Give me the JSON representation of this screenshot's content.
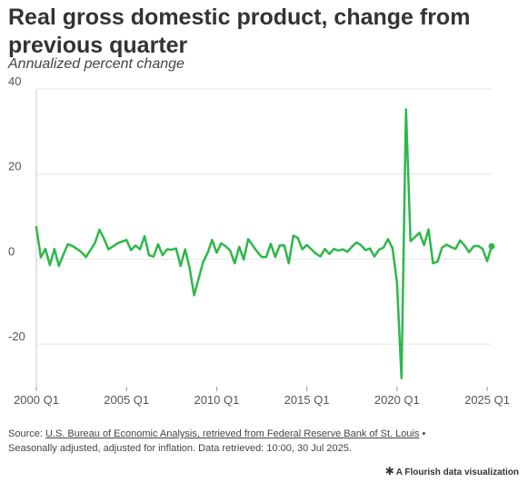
{
  "header": {
    "title": "Real gross domestic product, change from previous quarter",
    "subtitle": "Annualized percent change"
  },
  "footer": {
    "source_prefix": "Source: ",
    "source_link": "U.S. Bureau of Economic Analysis, retrieved from Federal Reserve Bank of St. Louis",
    "bullet": " •",
    "note": "Seasonally adjusted, adjusted for inflation. Data retrieved: 10:00, 30 Jul 2025.",
    "credit": "A Flourish data visualization",
    "credit_icon": "flourish-star-icon"
  },
  "chart_data": {
    "type": "line",
    "title": "Real gross domestic product, change from previous quarter",
    "subtitle": "Annualized percent change",
    "xlabel": "",
    "ylabel": "",
    "x_start": "2000 Q1",
    "x_end": "2025 Q2",
    "xticks": [
      "2000 Q1",
      "2005 Q1",
      "2010 Q1",
      "2015 Q1",
      "2020 Q1",
      "2025 Q1"
    ],
    "yticks": [
      40,
      20,
      0,
      -20
    ],
    "ylim": [
      -30,
      40
    ],
    "grid": true,
    "line_color": "#2db84a",
    "series": [
      {
        "x": [
          "2000 Q1",
          "2000 Q2",
          "2000 Q3",
          "2000 Q4",
          "2001 Q1",
          "2001 Q2",
          "2001 Q3",
          "2001 Q4",
          "2002 Q1",
          "2002 Q2",
          "2002 Q3",
          "2002 Q4",
          "2003 Q1",
          "2003 Q2",
          "2003 Q3",
          "2003 Q4",
          "2004 Q1",
          "2004 Q2",
          "2004 Q3",
          "2004 Q4",
          "2005 Q1",
          "2005 Q2",
          "2005 Q3",
          "2005 Q4",
          "2006 Q1",
          "2006 Q2",
          "2006 Q3",
          "2006 Q4",
          "2007 Q1",
          "2007 Q2",
          "2007 Q3",
          "2007 Q4",
          "2008 Q1",
          "2008 Q2",
          "2008 Q3",
          "2008 Q4",
          "2009 Q1",
          "2009 Q2",
          "2009 Q3",
          "2009 Q4",
          "2010 Q1",
          "2010 Q2",
          "2010 Q3",
          "2010 Q4",
          "2011 Q1",
          "2011 Q2",
          "2011 Q3",
          "2011 Q4",
          "2012 Q1",
          "2012 Q2",
          "2012 Q3",
          "2012 Q4",
          "2013 Q1",
          "2013 Q2",
          "2013 Q3",
          "2013 Q4",
          "2014 Q1",
          "2014 Q2",
          "2014 Q3",
          "2014 Q4",
          "2015 Q1",
          "2015 Q2",
          "2015 Q3",
          "2015 Q4",
          "2016 Q1",
          "2016 Q2",
          "2016 Q3",
          "2016 Q4",
          "2017 Q1",
          "2017 Q2",
          "2017 Q3",
          "2017 Q4",
          "2018 Q1",
          "2018 Q2",
          "2018 Q3",
          "2018 Q4",
          "2019 Q1",
          "2019 Q2",
          "2019 Q3",
          "2019 Q4",
          "2020 Q1",
          "2020 Q2",
          "2020 Q3",
          "2020 Q4",
          "2021 Q1",
          "2021 Q2",
          "2021 Q3",
          "2021 Q4",
          "2022 Q1",
          "2022 Q2",
          "2022 Q3",
          "2022 Q4",
          "2023 Q1",
          "2023 Q2",
          "2023 Q3",
          "2023 Q4",
          "2024 Q1",
          "2024 Q2",
          "2024 Q3",
          "2024 Q4",
          "2025 Q1",
          "2025 Q2"
        ],
        "values": [
          7.5,
          0.4,
          2.4,
          -1.4,
          2.4,
          -1.6,
          1.1,
          3.5,
          3.1,
          2.4,
          1.6,
          0.5,
          2.1,
          3.8,
          6.9,
          4.8,
          2.3,
          3.0,
          3.7,
          4.1,
          4.5,
          2.1,
          3.2,
          2.3,
          5.4,
          0.9,
          0.6,
          3.5,
          0.9,
          2.3,
          2.2,
          2.5,
          -1.6,
          2.3,
          -2.1,
          -8.5,
          -4.6,
          -0.7,
          1.5,
          4.5,
          1.5,
          3.7,
          3.0,
          2.0,
          -1.0,
          2.9,
          -0.1,
          4.7,
          3.2,
          1.7,
          0.5,
          0.5,
          3.6,
          0.5,
          3.2,
          3.2,
          -1.0,
          5.5,
          5.0,
          2.3,
          3.3,
          2.3,
          1.3,
          0.6,
          2.4,
          1.2,
          2.4,
          2.0,
          2.3,
          1.7,
          2.9,
          3.9,
          3.3,
          2.1,
          2.5,
          0.6,
          2.2,
          2.7,
          4.7,
          2.6,
          -5.5,
          -28.0,
          35.2,
          4.2,
          5.2,
          6.2,
          3.3,
          7.0,
          -1.0,
          -0.6,
          2.7,
          3.4,
          2.8,
          2.4,
          4.4,
          3.2,
          1.6,
          3.0,
          3.1,
          2.4,
          -0.5,
          3.0
        ]
      }
    ]
  }
}
